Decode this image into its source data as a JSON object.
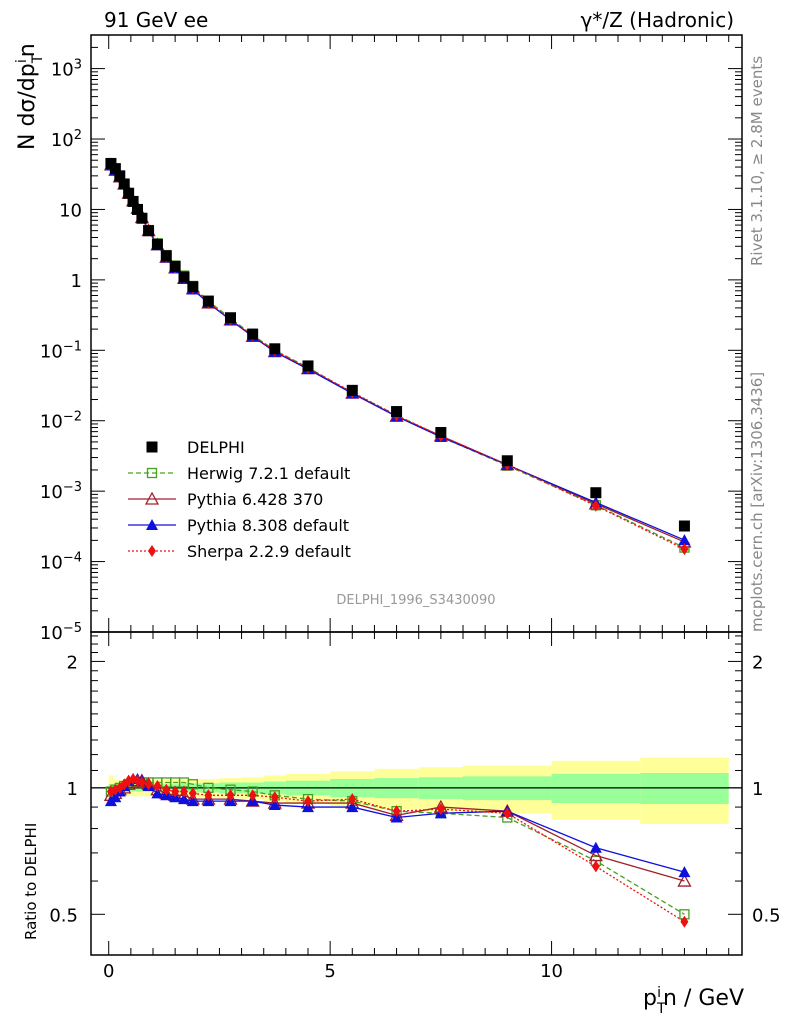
{
  "header": {
    "left_title": "91 GeV ee",
    "right_title": "γ*/Z (Hadronic)"
  },
  "side": {
    "rivet": "Rivet 3.1.10, ≥ 2.8M events",
    "mcplots": "mcplots.cern.ch [arXiv:1306.3436]"
  },
  "reference": "DELPHI_1996_S3430090",
  "axes": {
    "ylabel_main": "N dσ/dp_T^i n",
    "ylabel_ratio": "Ratio to DELPHI",
    "xlabel": "p_T^i n / GeV"
  },
  "chart_data": [
    {
      "type": "scatter",
      "panel": "main",
      "xlim": [
        -0.4,
        14.3
      ],
      "ylim": [
        1e-05,
        3000
      ],
      "yscale": "log",
      "y_tick_labels": [
        "10^-5",
        "10^-4",
        "10^-3",
        "10^-2",
        "10^-1",
        "1",
        "10",
        "10^2",
        "10^3"
      ],
      "x_tick_labels": [
        "0",
        "5",
        "10"
      ],
      "x": [
        0.05,
        0.15,
        0.25,
        0.35,
        0.45,
        0.55,
        0.65,
        0.75,
        0.9,
        1.1,
        1.3,
        1.5,
        1.7,
        1.9,
        2.25,
        2.75,
        3.25,
        3.75,
        4.5,
        5.5,
        6.5,
        7.5,
        9.0,
        11.0,
        13.0
      ],
      "series": [
        {
          "name": "DELPHI",
          "color": "#000000",
          "marker": "square",
          "line": "none",
          "values": [
            45,
            38,
            30,
            23,
            17,
            13,
            10,
            7.5,
            5.0,
            3.2,
            2.2,
            1.55,
            1.1,
            0.8,
            0.5,
            0.29,
            0.17,
            0.105,
            0.06,
            0.027,
            0.0135,
            0.0068,
            0.0027,
            0.00095,
            0.00032
          ]
        },
        {
          "name": "Herwig 7.2.1 default",
          "color": "#44a020",
          "marker": "open-square",
          "line": "dashed",
          "values": [
            44,
            37,
            30,
            23,
            17,
            13,
            10,
            7.5,
            5.1,
            3.3,
            2.25,
            1.6,
            1.15,
            0.82,
            0.5,
            0.285,
            0.165,
            0.1,
            0.057,
            0.025,
            0.012,
            0.0059,
            0.0023,
            0.00063,
            0.000158
          ]
        },
        {
          "name": "Pythia 6.428 370",
          "color": "#a0202a",
          "marker": "open-triangle",
          "line": "solid",
          "values": [
            43,
            36,
            29,
            23,
            17,
            13.3,
            10.4,
            7.7,
            5.0,
            3.15,
            2.1,
            1.48,
            1.05,
            0.75,
            0.47,
            0.27,
            0.158,
            0.096,
            0.055,
            0.0247,
            0.0116,
            0.0061,
            0.00237,
            0.00066,
            0.00019
          ]
        },
        {
          "name": "Pythia 8.308 default",
          "color": "#1010dd",
          "marker": "triangle",
          "line": "solid",
          "values": [
            42,
            36,
            29,
            23,
            17.2,
            13.5,
            10.5,
            7.8,
            5.0,
            3.1,
            2.08,
            1.46,
            1.03,
            0.73,
            0.47,
            0.27,
            0.158,
            0.095,
            0.054,
            0.0244,
            0.0115,
            0.0059,
            0.00236,
            0.00069,
            0.000202
          ]
        },
        {
          "name": "Sherpa 2.2.9 default",
          "color": "#ee1111",
          "marker": "diamond",
          "line": "dotted",
          "values": [
            44,
            37,
            30,
            23,
            17,
            13.4,
            10.3,
            7.6,
            5.1,
            3.2,
            2.15,
            1.5,
            1.07,
            0.77,
            0.48,
            0.275,
            0.162,
            0.099,
            0.056,
            0.0254,
            0.0119,
            0.0061,
            0.00238,
            0.00062,
            0.00015
          ]
        }
      ],
      "legend": "bottom-left"
    },
    {
      "type": "scatter",
      "panel": "ratio",
      "xlim": [
        -0.4,
        14.3
      ],
      "ylim": [
        0.4,
        2.35
      ],
      "yscale": "log",
      "y_tick_labels": [
        "0.5",
        "1",
        "2"
      ],
      "xlabel": "p_T^i n / GeV",
      "ylabel": "Ratio to DELPHI",
      "x": [
        0.05,
        0.15,
        0.25,
        0.35,
        0.45,
        0.55,
        0.65,
        0.75,
        0.9,
        1.1,
        1.3,
        1.5,
        1.7,
        1.9,
        2.25,
        2.75,
        3.25,
        3.75,
        4.5,
        5.5,
        6.5,
        7.5,
        9.0,
        11.0,
        13.0
      ],
      "uncertainty_bands": {
        "edges": [
          0,
          0.1,
          0.2,
          0.3,
          0.4,
          0.5,
          0.6,
          0.7,
          0.8,
          1.0,
          1.2,
          1.4,
          1.6,
          1.8,
          2.0,
          2.5,
          3.0,
          3.5,
          4.0,
          5.0,
          6.0,
          7.0,
          8.0,
          10.0,
          12.0,
          14.0
        ],
        "inner": [
          0.02,
          0.02,
          0.02,
          0.02,
          0.02,
          0.02,
          0.02,
          0.02,
          0.02,
          0.02,
          0.02,
          0.02,
          0.025,
          0.025,
          0.025,
          0.03,
          0.03,
          0.035,
          0.04,
          0.05,
          0.055,
          0.06,
          0.065,
          0.08,
          0.085
        ],
        "outer": [
          0.07,
          0.05,
          0.045,
          0.045,
          0.045,
          0.045,
          0.045,
          0.045,
          0.045,
          0.045,
          0.045,
          0.045,
          0.045,
          0.05,
          0.05,
          0.055,
          0.06,
          0.07,
          0.08,
          0.095,
          0.11,
          0.12,
          0.13,
          0.16,
          0.18
        ],
        "inner_color": "#99ff99",
        "outer_color": "#ffff99"
      },
      "series": [
        {
          "name": "Herwig 7.2.1 default",
          "color": "#44a020",
          "marker": "open-square",
          "line": "dashed",
          "values": [
            0.98,
            0.99,
            1.0,
            1.01,
            1.02,
            1.03,
            1.03,
            1.03,
            1.03,
            1.03,
            1.03,
            1.03,
            1.03,
            1.02,
            1.0,
            0.99,
            0.98,
            0.96,
            0.94,
            0.93,
            0.88,
            0.87,
            0.85,
            0.67,
            0.5
          ]
        },
        {
          "name": "Pythia 6.428 370",
          "color": "#a0202a",
          "marker": "open-triangle",
          "line": "solid",
          "values": [
            0.96,
            0.97,
            0.99,
            1.0,
            1.02,
            1.03,
            1.04,
            1.04,
            1.02,
            0.99,
            0.97,
            0.96,
            0.96,
            0.94,
            0.94,
            0.94,
            0.93,
            0.92,
            0.92,
            0.92,
            0.86,
            0.9,
            0.88,
            0.69,
            0.6
          ]
        },
        {
          "name": "Pythia 8.308 default",
          "color": "#1010dd",
          "marker": "triangle",
          "line": "solid",
          "values": [
            0.93,
            0.95,
            0.98,
            1.01,
            1.04,
            1.05,
            1.05,
            1.04,
            1.01,
            0.97,
            0.96,
            0.95,
            0.94,
            0.93,
            0.93,
            0.93,
            0.93,
            0.91,
            0.9,
            0.9,
            0.85,
            0.87,
            0.88,
            0.72,
            0.63
          ]
        },
        {
          "name": "Sherpa 2.2.9 default",
          "color": "#ee1111",
          "marker": "diamond",
          "line": "dotted",
          "values": [
            0.98,
            0.99,
            1.0,
            1.02,
            1.04,
            1.05,
            1.04,
            1.03,
            1.02,
            1.01,
            0.99,
            0.98,
            0.98,
            0.97,
            0.96,
            0.96,
            0.96,
            0.95,
            0.93,
            0.94,
            0.88,
            0.89,
            0.87,
            0.65,
            0.48
          ]
        }
      ],
      "reference_line": 1
    }
  ]
}
